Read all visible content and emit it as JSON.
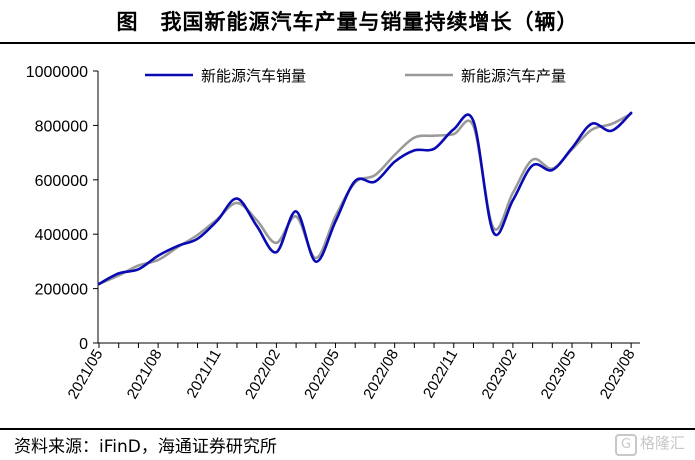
{
  "title": "图　我国新能源汽车产量与销量持续增长（辆）",
  "source": "资料来源：iFinD，海通证券研究所",
  "watermark": "格隆汇",
  "colors": {
    "sales": "#0a0ab4",
    "production": "#9a9a9a"
  },
  "chart_data": {
    "type": "line",
    "title": "我国新能源汽车产量与销量持续增长（辆）",
    "x": [
      "2021/05",
      "2021/06",
      "2021/07",
      "2021/08",
      "2021/09",
      "2021/10",
      "2021/11",
      "2021/12",
      "2022/01",
      "2022/02",
      "2022/03",
      "2022/04",
      "2022/05",
      "2022/06",
      "2022/07",
      "2022/08",
      "2022/09",
      "2022/10",
      "2022/11",
      "2022/12",
      "2023/01",
      "2023/02",
      "2023/03",
      "2023/04",
      "2023/05",
      "2023/06",
      "2023/07",
      "2023/08"
    ],
    "x_tick_labels": [
      "2021/05",
      "2021/08",
      "2021/11",
      "2022/02",
      "2022/05",
      "2022/08",
      "2022/11",
      "2023/02",
      "2023/05",
      "2023/08"
    ],
    "series": [
      {
        "name": "新能源汽车销量",
        "color": "#0a0ab4",
        "values": [
          217000,
          256000,
          271000,
          321000,
          357000,
          383000,
          450000,
          531000,
          431000,
          334000,
          484000,
          299000,
          447000,
          596000,
          593000,
          666000,
          708000,
          714000,
          786000,
          815000,
          408000,
          525000,
          653000,
          636000,
          717000,
          806000,
          780000,
          846000
        ]
      },
      {
        "name": "新能源汽车产量",
        "color": "#9a9a9a",
        "values": [
          217000,
          248000,
          285000,
          305000,
          353000,
          397000,
          455000,
          515000,
          452000,
          368000,
          465000,
          312000,
          466000,
          590000,
          617000,
          691000,
          755000,
          762000,
          768000,
          797000,
          425000,
          552000,
          674000,
          641000,
          712000,
          784000,
          805000,
          843000
        ]
      }
    ],
    "ylim": [
      0,
      1000000
    ],
    "yticks": [
      "0",
      "200000",
      "400000",
      "600000",
      "800000",
      "1000000"
    ],
    "legend": "top",
    "grid": false
  }
}
